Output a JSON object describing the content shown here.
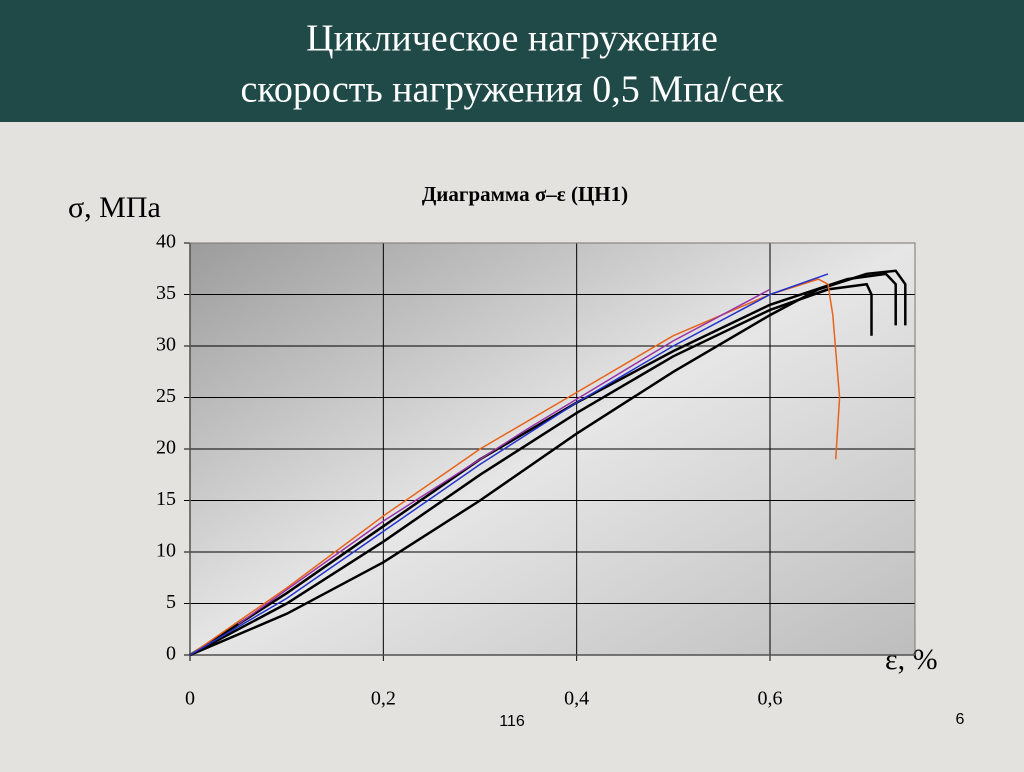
{
  "slide": {
    "heading": [
      "Циклическое нагружение",
      "скорость нагружения  0,5 Мпа/сек"
    ],
    "footer_left": "116",
    "footer_right": "6"
  },
  "chart_data": {
    "type": "line",
    "title": "Диаграмма σ–ε  (ЦН1)",
    "ylabel": "σ, МПа",
    "xlabel": "ε, %",
    "xlim": [
      0,
      0.75
    ],
    "ylim": [
      0,
      40
    ],
    "xticks": [
      0,
      {
        "value": 0.2,
        "label": "0,2"
      },
      {
        "value": 0.4,
        "label": "0,4"
      },
      {
        "value": 0.6,
        "label": "0,6"
      }
    ],
    "yticks": [
      0,
      5,
      10,
      15,
      20,
      25,
      30,
      35,
      40
    ],
    "grid": true,
    "series": [
      {
        "color": "#000000",
        "x": [
          0,
          0.1,
          0.2,
          0.3,
          0.4,
          0.5,
          0.6,
          0.65,
          0.7,
          0.73,
          0.74,
          0.74
        ],
        "values": [
          0,
          4,
          9,
          15,
          21.5,
          27.5,
          33,
          35.5,
          37,
          37.3,
          36,
          32
        ]
      },
      {
        "color": "#000000",
        "x": [
          0,
          0.1,
          0.2,
          0.3,
          0.4,
          0.5,
          0.6,
          0.66,
          0.7,
          0.705,
          0.705
        ],
        "values": [
          0,
          5,
          11,
          17.5,
          23.5,
          29,
          33.5,
          35.5,
          36,
          35,
          31
        ]
      },
      {
        "color": "#000000",
        "x": [
          0,
          0.1,
          0.2,
          0.3,
          0.4,
          0.5,
          0.6,
          0.68,
          0.72,
          0.73,
          0.73
        ],
        "values": [
          0,
          6,
          12.5,
          19,
          24.5,
          29.5,
          34,
          36.5,
          37,
          36,
          32
        ]
      },
      {
        "color": "#e8641a",
        "x": [
          0,
          0.1,
          0.2,
          0.3,
          0.4,
          0.5,
          0.6,
          0.65,
          0.66,
          0.665,
          0.672,
          0.668
        ],
        "values": [
          0,
          6.5,
          13.5,
          20,
          25.5,
          31,
          35,
          36.5,
          36,
          33,
          25,
          19
        ]
      },
      {
        "color": "#2233cc",
        "x": [
          0,
          0.1,
          0.2,
          0.3,
          0.4,
          0.5,
          0.6,
          0.66
        ],
        "values": [
          0,
          5.5,
          12,
          18.5,
          24.5,
          30,
          35,
          37
        ]
      },
      {
        "color": "#9933aa",
        "x": [
          0.05,
          0.2,
          0.35,
          0.5,
          0.6
        ],
        "values": [
          3,
          13,
          22,
          30.5,
          35.5
        ]
      }
    ]
  }
}
